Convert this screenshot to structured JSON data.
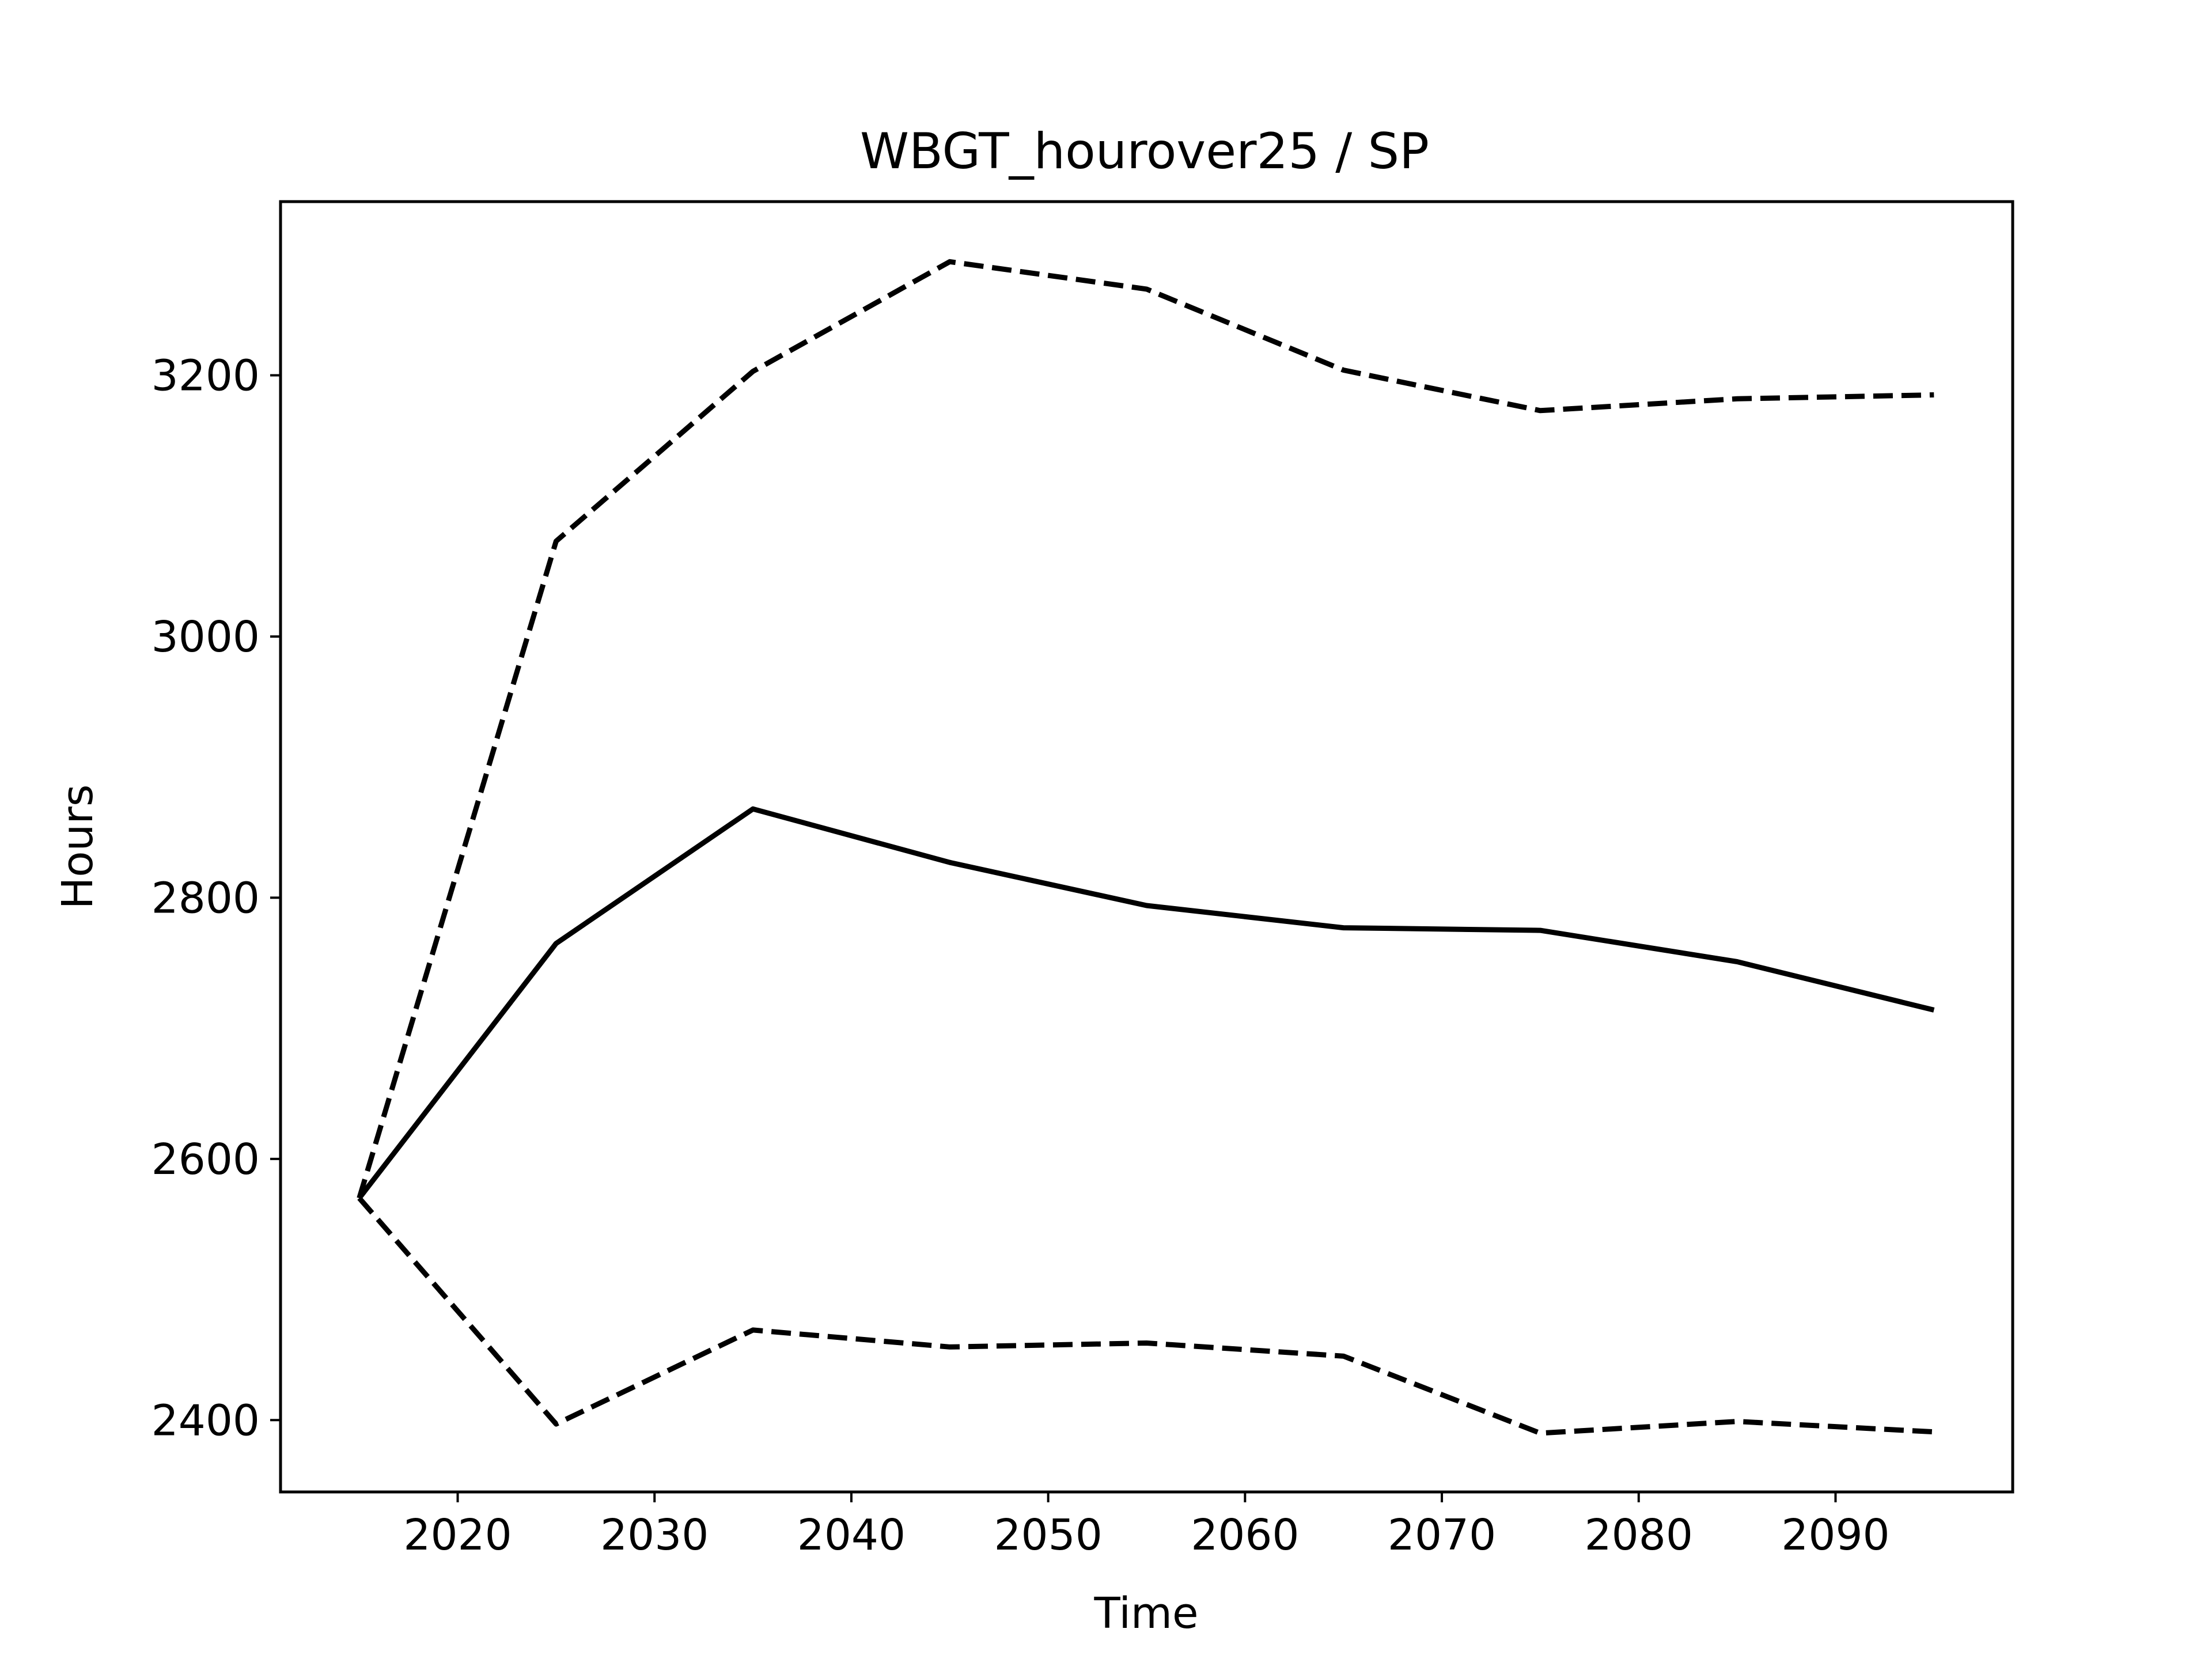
{
  "chart_data": {
    "type": "line",
    "title": "WBGT_hourover25 / SP",
    "xlabel": "Time",
    "ylabel": "Hours",
    "x": [
      2015,
      2025,
      2035,
      2045,
      2055,
      2065,
      2075,
      2085,
      2095
    ],
    "xlim": [
      2011,
      2099
    ],
    "ylim": [
      2345,
      3333
    ],
    "xticks": [
      2020,
      2030,
      2040,
      2050,
      2060,
      2070,
      2080,
      2090
    ],
    "yticks": [
      2400,
      2600,
      2800,
      3000,
      3200
    ],
    "grid": false,
    "series": [
      {
        "style": "solid",
        "color": "#000000",
        "values": [
          2570,
          2765,
          2868,
          2827,
          2794,
          2777,
          2775,
          2751,
          2714
        ]
      },
      {
        "style": "dashed",
        "color": "#000000",
        "values": [
          2570,
          3073,
          3203,
          3287,
          3266,
          3204,
          3173,
          3182,
          3185
        ]
      },
      {
        "style": "dashed",
        "color": "#000000",
        "values": [
          2570,
          2397,
          2469,
          2456,
          2459,
          2449,
          2390,
          2399,
          2391
        ]
      }
    ]
  }
}
